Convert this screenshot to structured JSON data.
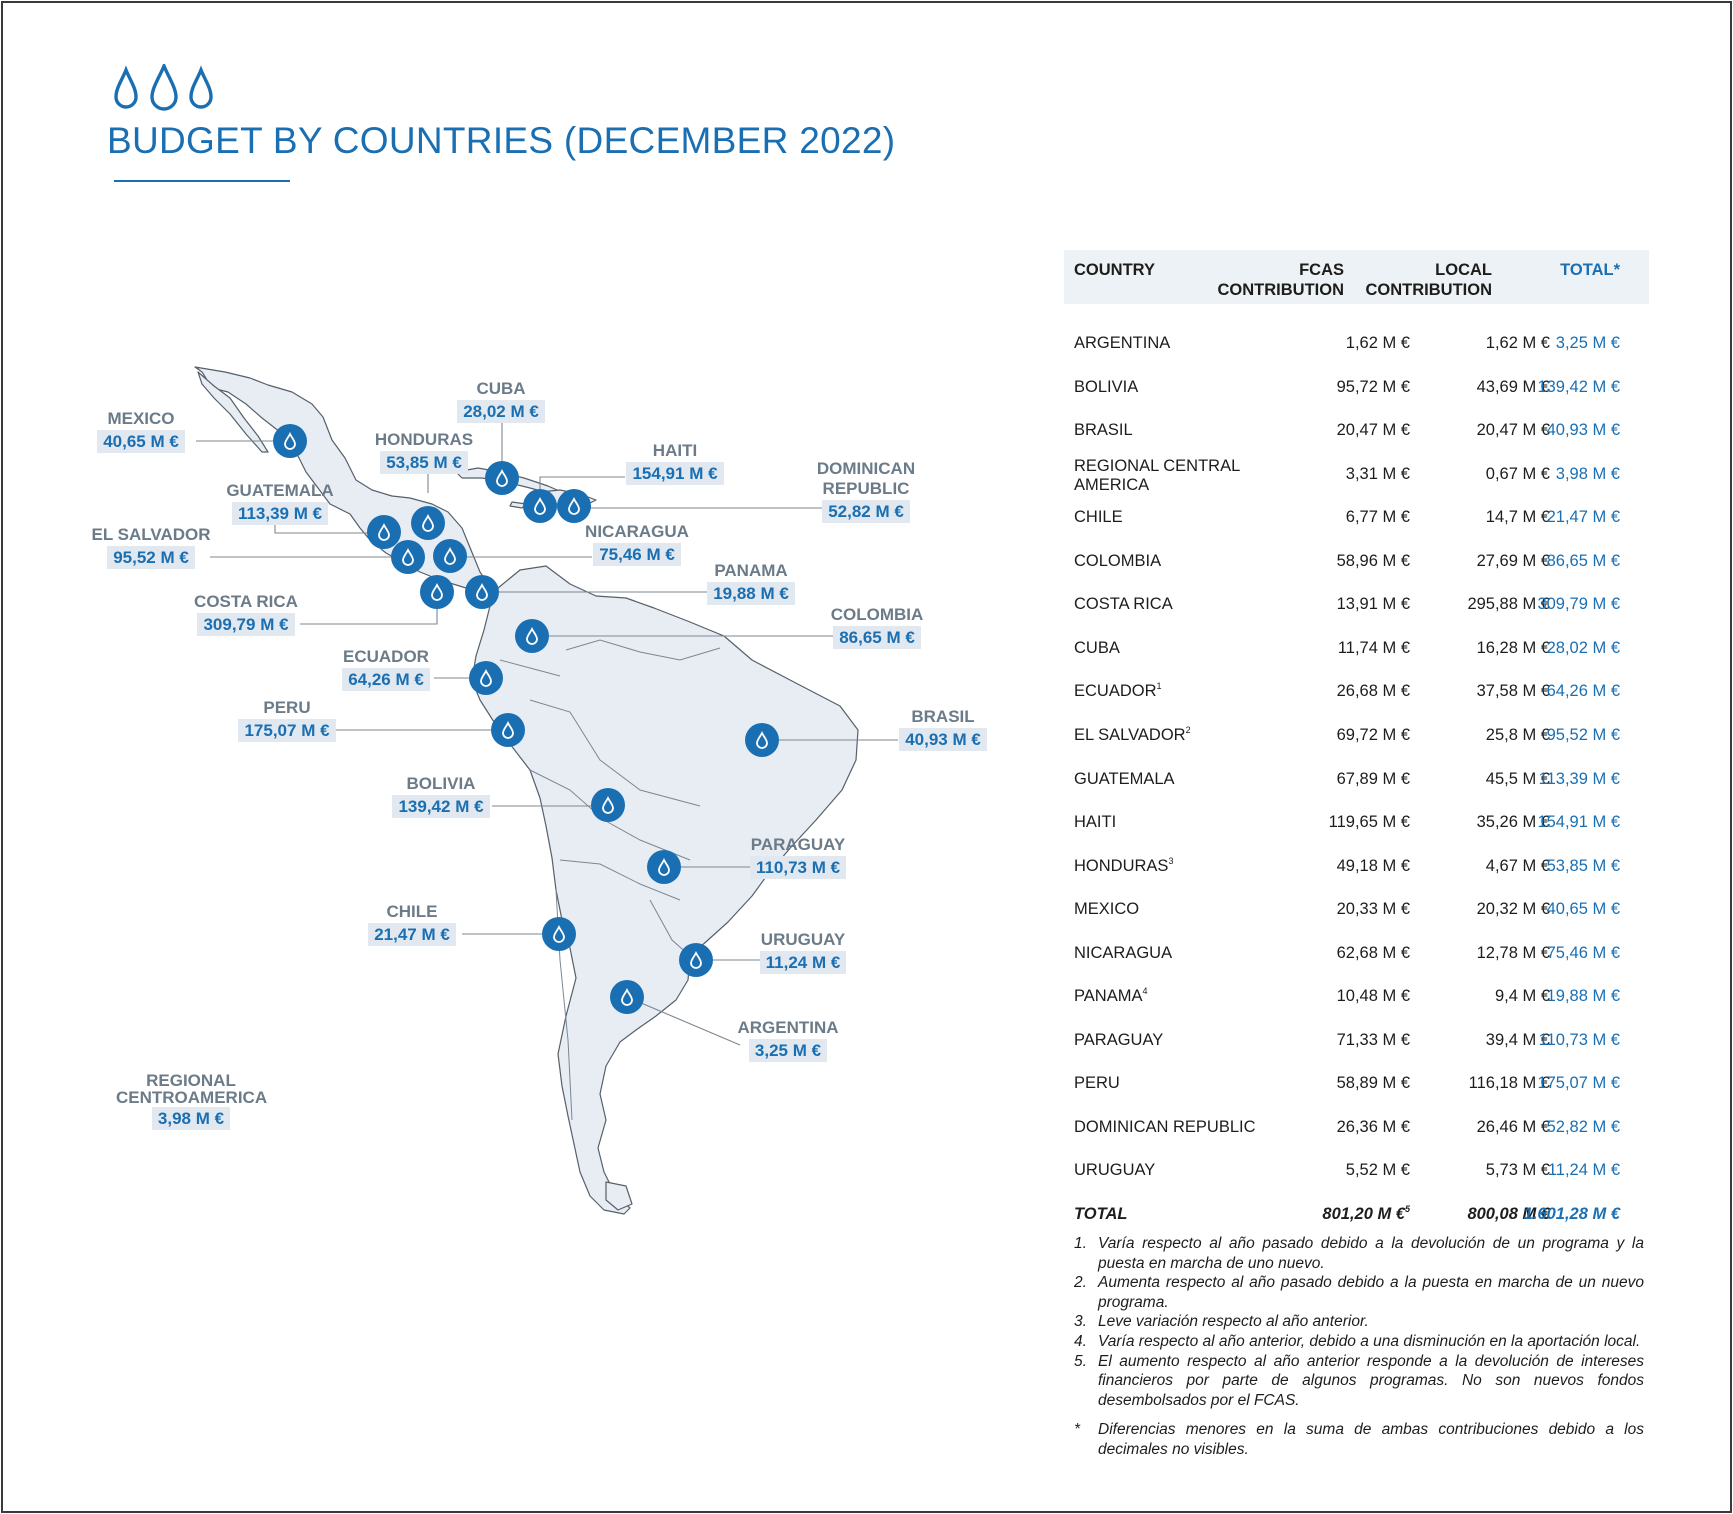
{
  "header": {
    "title": "BUDGET BY COUNTRIES (DECEMBER 2022)",
    "icon": "water-drops-icon",
    "accent_color": "#1a6fb3"
  },
  "map": {
    "labels": [
      {
        "key": "mexico",
        "name": "MEXICO",
        "value": "40,65 M €"
      },
      {
        "key": "cuba",
        "name": "CUBA",
        "value": "28,02 M €"
      },
      {
        "key": "honduras",
        "name": "HONDURAS",
        "value": "53,85 M €"
      },
      {
        "key": "haiti",
        "name": "HAITI",
        "value": "154,91 M €"
      },
      {
        "key": "dominican",
        "name": "DOMINICAN REPUBLIC",
        "value": "52,82 M €"
      },
      {
        "key": "guatemala",
        "name": "GUATEMALA",
        "value": "113,39 M €"
      },
      {
        "key": "elsalvador",
        "name": "EL SALVADOR",
        "value": "95,52 M €"
      },
      {
        "key": "nicaragua",
        "name": "NICARAGUA",
        "value": "75,46 M €"
      },
      {
        "key": "panama",
        "name": "PANAMA",
        "value": "19,88 M €"
      },
      {
        "key": "costarica",
        "name": "COSTA RICA",
        "value": "309,79 M €"
      },
      {
        "key": "colombia",
        "name": "COLOMBIA",
        "value": "86,65 M €"
      },
      {
        "key": "ecuador",
        "name": "ECUADOR",
        "value": "64,26 M €"
      },
      {
        "key": "peru",
        "name": "PERU",
        "value": "175,07 M €"
      },
      {
        "key": "brasil",
        "name": "BRASIL",
        "value": "40,93 M €"
      },
      {
        "key": "bolivia",
        "name": "BOLIVIA",
        "value": "139,42 M €"
      },
      {
        "key": "paraguay",
        "name": "PARAGUAY",
        "value": "110,73 M €"
      },
      {
        "key": "chile",
        "name": "CHILE",
        "value": "21,47 M €"
      },
      {
        "key": "uruguay",
        "name": "URUGUAY",
        "value": "11,24 M €"
      },
      {
        "key": "argentina",
        "name": "ARGENTINA",
        "value": "3,25 M €"
      },
      {
        "key": "regional",
        "name": "REGIONAL CENTROAMERICA",
        "value": "3,98 M €"
      }
    ]
  },
  "table": {
    "headers": {
      "country": "COUNTRY",
      "fcas": "FCAS CONTRIBUTION",
      "local": "LOCAL CONTRIBUTION",
      "total": "TOTAL*"
    },
    "rows": [
      {
        "country": "ARGENTINA",
        "sup": "",
        "fcas": "1,62 M €",
        "local": "1,62 M €",
        "total": "3,25 M €"
      },
      {
        "country": "BOLIVIA",
        "sup": "",
        "fcas": "95,72 M €",
        "local": "43,69 M €",
        "total": "139,42 M €"
      },
      {
        "country": "BRASIL",
        "sup": "",
        "fcas": "20,47 M €",
        "local": "20,47 M €",
        "total": "40,93 M €"
      },
      {
        "country": "REGIONAL CENTRAL AMERICA",
        "sup": "",
        "fcas": "3,31 M €",
        "local": "0,67 M €",
        "total": "3,98 M €"
      },
      {
        "country": "CHILE",
        "sup": "",
        "fcas": "6,77 M €",
        "local": "14,7 M €",
        "total": "21,47 M €"
      },
      {
        "country": "COLOMBIA",
        "sup": "",
        "fcas": "58,96 M €",
        "local": "27,69 M €",
        "total": "86,65 M €"
      },
      {
        "country": "COSTA RICA",
        "sup": "",
        "fcas": "13,91 M €",
        "local": "295,88 M €",
        "total": "309,79 M €"
      },
      {
        "country": "CUBA",
        "sup": "",
        "fcas": "11,74 M €",
        "local": "16,28 M €",
        "total": "28,02 M €"
      },
      {
        "country": "ECUADOR",
        "sup": "1",
        "fcas": "26,68 M €",
        "local": "37,58 M €",
        "total": "64,26 M €"
      },
      {
        "country": "EL SALVADOR",
        "sup": "2",
        "fcas": "69,72 M €",
        "local": "25,8 M €",
        "total": "95,52 M €"
      },
      {
        "country": "GUATEMALA",
        "sup": "",
        "fcas": "67,89 M €",
        "local": "45,5 M €",
        "total": "113,39 M €"
      },
      {
        "country": "HAITI",
        "sup": "",
        "fcas": "119,65 M €",
        "local": "35,26 M €",
        "total": "154,91 M €"
      },
      {
        "country": "HONDURAS",
        "sup": "3",
        "fcas": "49,18 M €",
        "local": "4,67 M €",
        "total": "53,85 M €"
      },
      {
        "country": "MEXICO",
        "sup": "",
        "fcas": "20,33 M €",
        "local": "20,32 M €",
        "total": "40,65 M €"
      },
      {
        "country": "NICARAGUA",
        "sup": "",
        "fcas": "62,68 M €",
        "local": "12,78 M €",
        "total": "75,46 M €"
      },
      {
        "country": "PANAMA",
        "sup": "4",
        "fcas": "10,48 M €",
        "local": "9,4 M €",
        "total": "19,88 M €"
      },
      {
        "country": "PARAGUAY",
        "sup": "",
        "fcas": "71,33 M €",
        "local": "39,4 M €",
        "total": "110,73 M €"
      },
      {
        "country": "PERU",
        "sup": "",
        "fcas": "58,89 M €",
        "local": "116,18 M €",
        "total": "175,07 M €"
      },
      {
        "country": "DOMINICAN REPUBLIC",
        "sup": "",
        "fcas": "26,36 M €",
        "local": "26,46 M €",
        "total": "52,82 M €"
      },
      {
        "country": "URUGUAY",
        "sup": "",
        "fcas": "5,52 M €",
        "local": "5,73 M €",
        "total": "11,24 M €"
      }
    ],
    "total": {
      "country": "TOTAL",
      "fcas": "801,20 M €",
      "fcas_sup": "5",
      "local": "800,08 M €",
      "total": "1.601,28 M €"
    }
  },
  "notes": [
    {
      "n": "1.",
      "text": "Varía respecto al año pasado debido a la devolución de un programa y la puesta en marcha de uno nuevo."
    },
    {
      "n": "2.",
      "text": "Aumenta respecto al año pasado debido a la puesta en marcha de un nuevo programa."
    },
    {
      "n": "3.",
      "text": "Leve variación respecto al año anterior."
    },
    {
      "n": "4.",
      "text": "Varía respecto al año anterior, debido a una disminución en la aportación local."
    },
    {
      "n": "5.",
      "text": "El aumento respecto al año anterior responde a la devolución de intereses financieros por parte de algunos programas. No son nuevos fondos desembolsados por el FCAS."
    },
    {
      "n": "*",
      "text": "Diferencias menores en la suma de ambas contribuciones debido a los decimales no visibles."
    }
  ]
}
